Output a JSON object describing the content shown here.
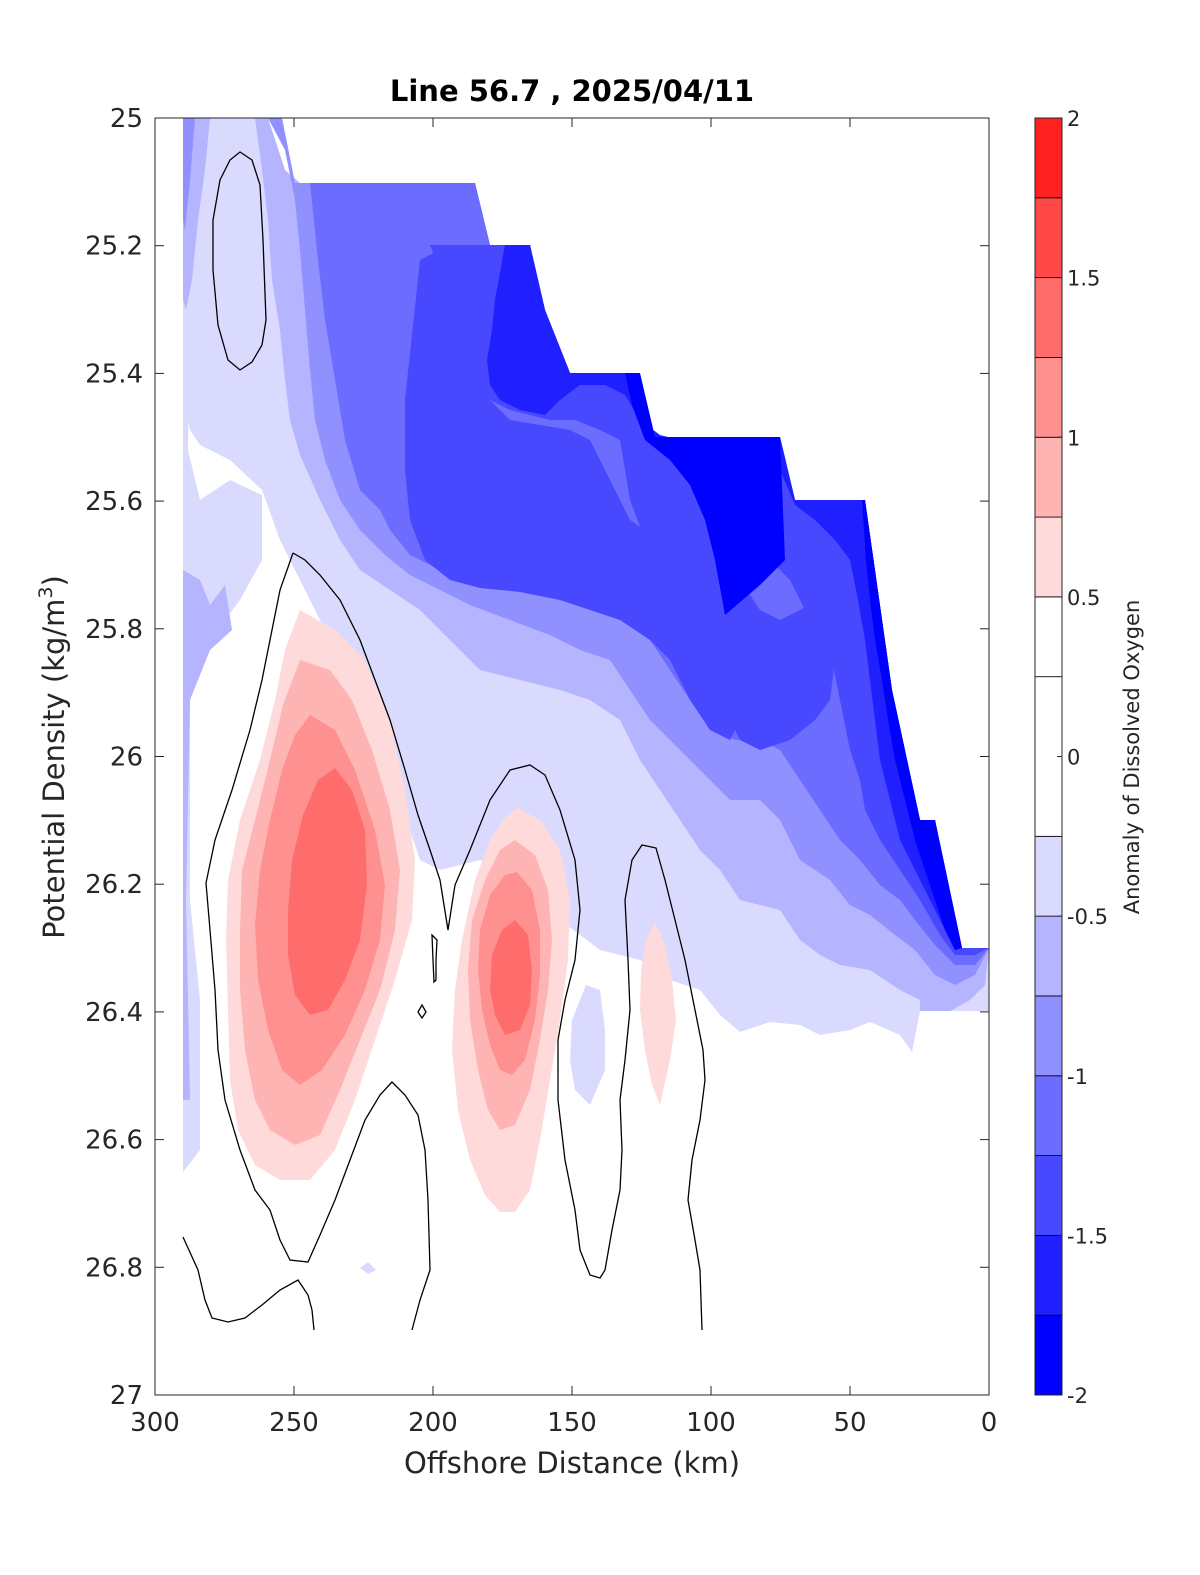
{
  "chart_data": {
    "type": "contour",
    "title": "Line 56.7 , 2025/04/11",
    "xlabel": "Offshore Distance (km)",
    "ylabel_main": "Potential Density (kg/m",
    "ylabel_sup": "3",
    "ylabel_close": ")",
    "colorbar_label": "Anomaly of Dissolved Oxygen",
    "xlim": [
      300,
      0
    ],
    "ylim": [
      25,
      27
    ],
    "x_reversed": true,
    "y_reversed": true,
    "x_ticks": [
      300,
      250,
      200,
      150,
      100,
      50,
      0
    ],
    "x_tick_labels": [
      "300",
      "250",
      "200",
      "150",
      "100",
      "50",
      "0"
    ],
    "y_ticks": [
      25,
      25.2,
      25.4,
      25.6,
      25.8,
      26,
      26.2,
      26.4,
      26.6,
      26.8,
      27
    ],
    "y_tick_labels": [
      "25",
      "25.2",
      "25.4",
      "25.6",
      "25.8",
      "26",
      "26.2",
      "26.4",
      "26.6",
      "26.8",
      "27"
    ],
    "colorbar_range": [
      -2,
      2
    ],
    "colorbar_ticks": [
      -2,
      -1.5,
      -1,
      -0.5,
      0,
      0.5,
      1,
      1.5,
      2
    ],
    "colorbar_tick_labels": [
      "-2",
      "-1.5",
      "-1",
      "-0.5",
      "0",
      "0.5",
      "1",
      "1.5",
      "2"
    ],
    "levels": [
      -2,
      -1.75,
      -1.5,
      -1.25,
      -1,
      -0.75,
      -0.5,
      -0.25,
      0.25,
      0.5,
      0.75,
      1,
      1.25,
      1.5,
      1.75,
      2
    ],
    "level_colors": [
      "#0000ff",
      "#2020ff",
      "#4848ff",
      "#6c6cff",
      "#9090ff",
      "#b4b4ff",
      "#dadaff",
      "#ffffff",
      "#ffffff",
      "#ffdada",
      "#ffb4b4",
      "#ff9090",
      "#ff6c6c",
      "#ff4848",
      "#ff2020",
      "#ff0000"
    ],
    "contour_zero_line_color": "#000000",
    "data_extent_top_edge": [
      [
        290,
        25.0
      ],
      [
        255,
        25.0
      ],
      [
        245,
        25.1
      ],
      [
        185,
        25.1
      ],
      [
        175,
        25.2
      ],
      [
        160,
        25.3
      ],
      [
        150,
        25.4
      ],
      [
        130,
        25.4
      ],
      [
        120,
        25.5
      ],
      [
        75,
        25.5
      ],
      [
        45,
        25.6
      ],
      [
        25,
        26.1
      ],
      [
        10,
        26.3
      ],
      [
        0,
        26.3
      ]
    ],
    "data_extent_bottom": [
      [
        290,
        26.6
      ],
      [
        255,
        26.85
      ],
      [
        210,
        26.9
      ],
      [
        150,
        26.9
      ],
      [
        103,
        26.9
      ]
    ],
    "features": [
      {
        "name": "positive-core-west",
        "center": [
          237,
          26.25
        ],
        "peak_anomaly": 1.25
      },
      {
        "name": "positive-core-middle",
        "center": [
          172,
          26.33
        ],
        "peak_anomaly": 1.25
      },
      {
        "name": "positive-patch-east",
        "center": [
          120,
          26.35
        ],
        "peak_anomaly": 0.5
      },
      {
        "name": "negative-core-offshore-upper",
        "center": [
          95,
          25.6
        ],
        "peak_anomaly": -1.75
      }
    ]
  }
}
